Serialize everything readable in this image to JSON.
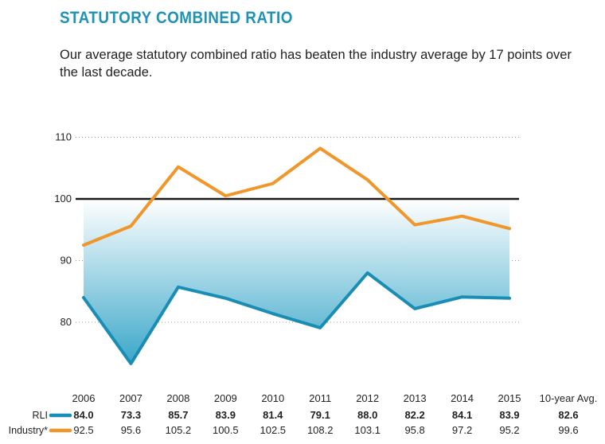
{
  "title": "STATUTORY COMBINED RATIO",
  "subtitle": "Our average statutory combined ratio has beaten the industry average by 17 points over the last decade.",
  "colors": {
    "title": "#1f93b5",
    "rli": "#1a8db5",
    "industry": "#f0962a",
    "reference": "#1a1a1a",
    "fill_top": "#ffffff",
    "fill_bottom": "#3aa7c9"
  },
  "chart_data": {
    "type": "line",
    "categories": [
      "2006",
      "2007",
      "2008",
      "2009",
      "2010",
      "2011",
      "2012",
      "2013",
      "2014",
      "2015"
    ],
    "series": [
      {
        "name": "RLI",
        "values": [
          84.0,
          73.3,
          85.7,
          83.9,
          81.4,
          79.1,
          88.0,
          82.2,
          84.1,
          83.9
        ],
        "labels": [
          "84.0",
          "73.3",
          "85.7",
          "83.9",
          "81.4",
          "79.1",
          "88.0",
          "82.2",
          "84.1",
          "83.9"
        ],
        "avg_label": "82.6"
      },
      {
        "name": "Industry*",
        "values": [
          92.5,
          95.6,
          105.2,
          100.5,
          102.5,
          108.2,
          103.1,
          95.8,
          97.2,
          95.2
        ],
        "labels": [
          "92.5",
          "95.6",
          "105.2",
          "100.5",
          "102.5",
          "108.2",
          "103.1",
          "95.8",
          "97.2",
          "95.2"
        ],
        "avg_label": "99.6"
      }
    ],
    "avg_header": "10-year Avg.",
    "reference_line": 100,
    "yticks": [
      "80",
      "90",
      "100",
      "110"
    ],
    "ylim": [
      70,
      110
    ],
    "grid": "dotted horizontal",
    "legend": "left, below axis"
  }
}
